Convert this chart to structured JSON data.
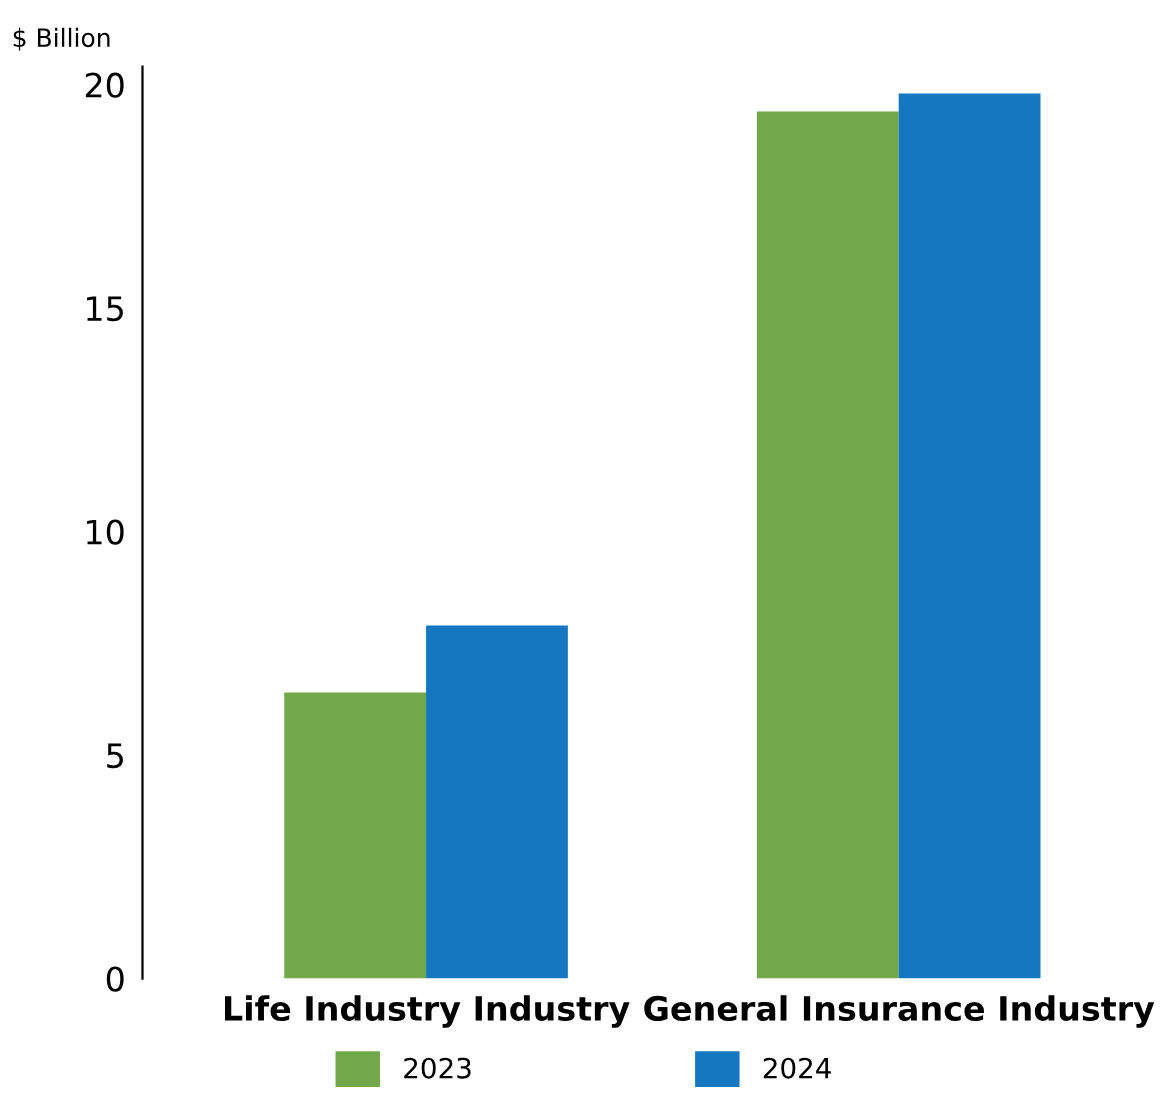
{
  "chart_data": {
    "type": "bar",
    "ylabel": "$ Billion",
    "categories": [
      "Life Industry Industry",
      "General Insurance Industry"
    ],
    "series": [
      {
        "name": "2023",
        "color": "#70a84a",
        "values": [
          6.4,
          19.4
        ]
      },
      {
        "name": "2024",
        "color": "#1577c0",
        "values": [
          7.9,
          19.8
        ]
      }
    ],
    "ylim": [
      0,
      20.4
    ],
    "yticks": [
      0,
      5,
      10,
      15,
      20
    ],
    "grid": false,
    "legend": "bottom"
  }
}
